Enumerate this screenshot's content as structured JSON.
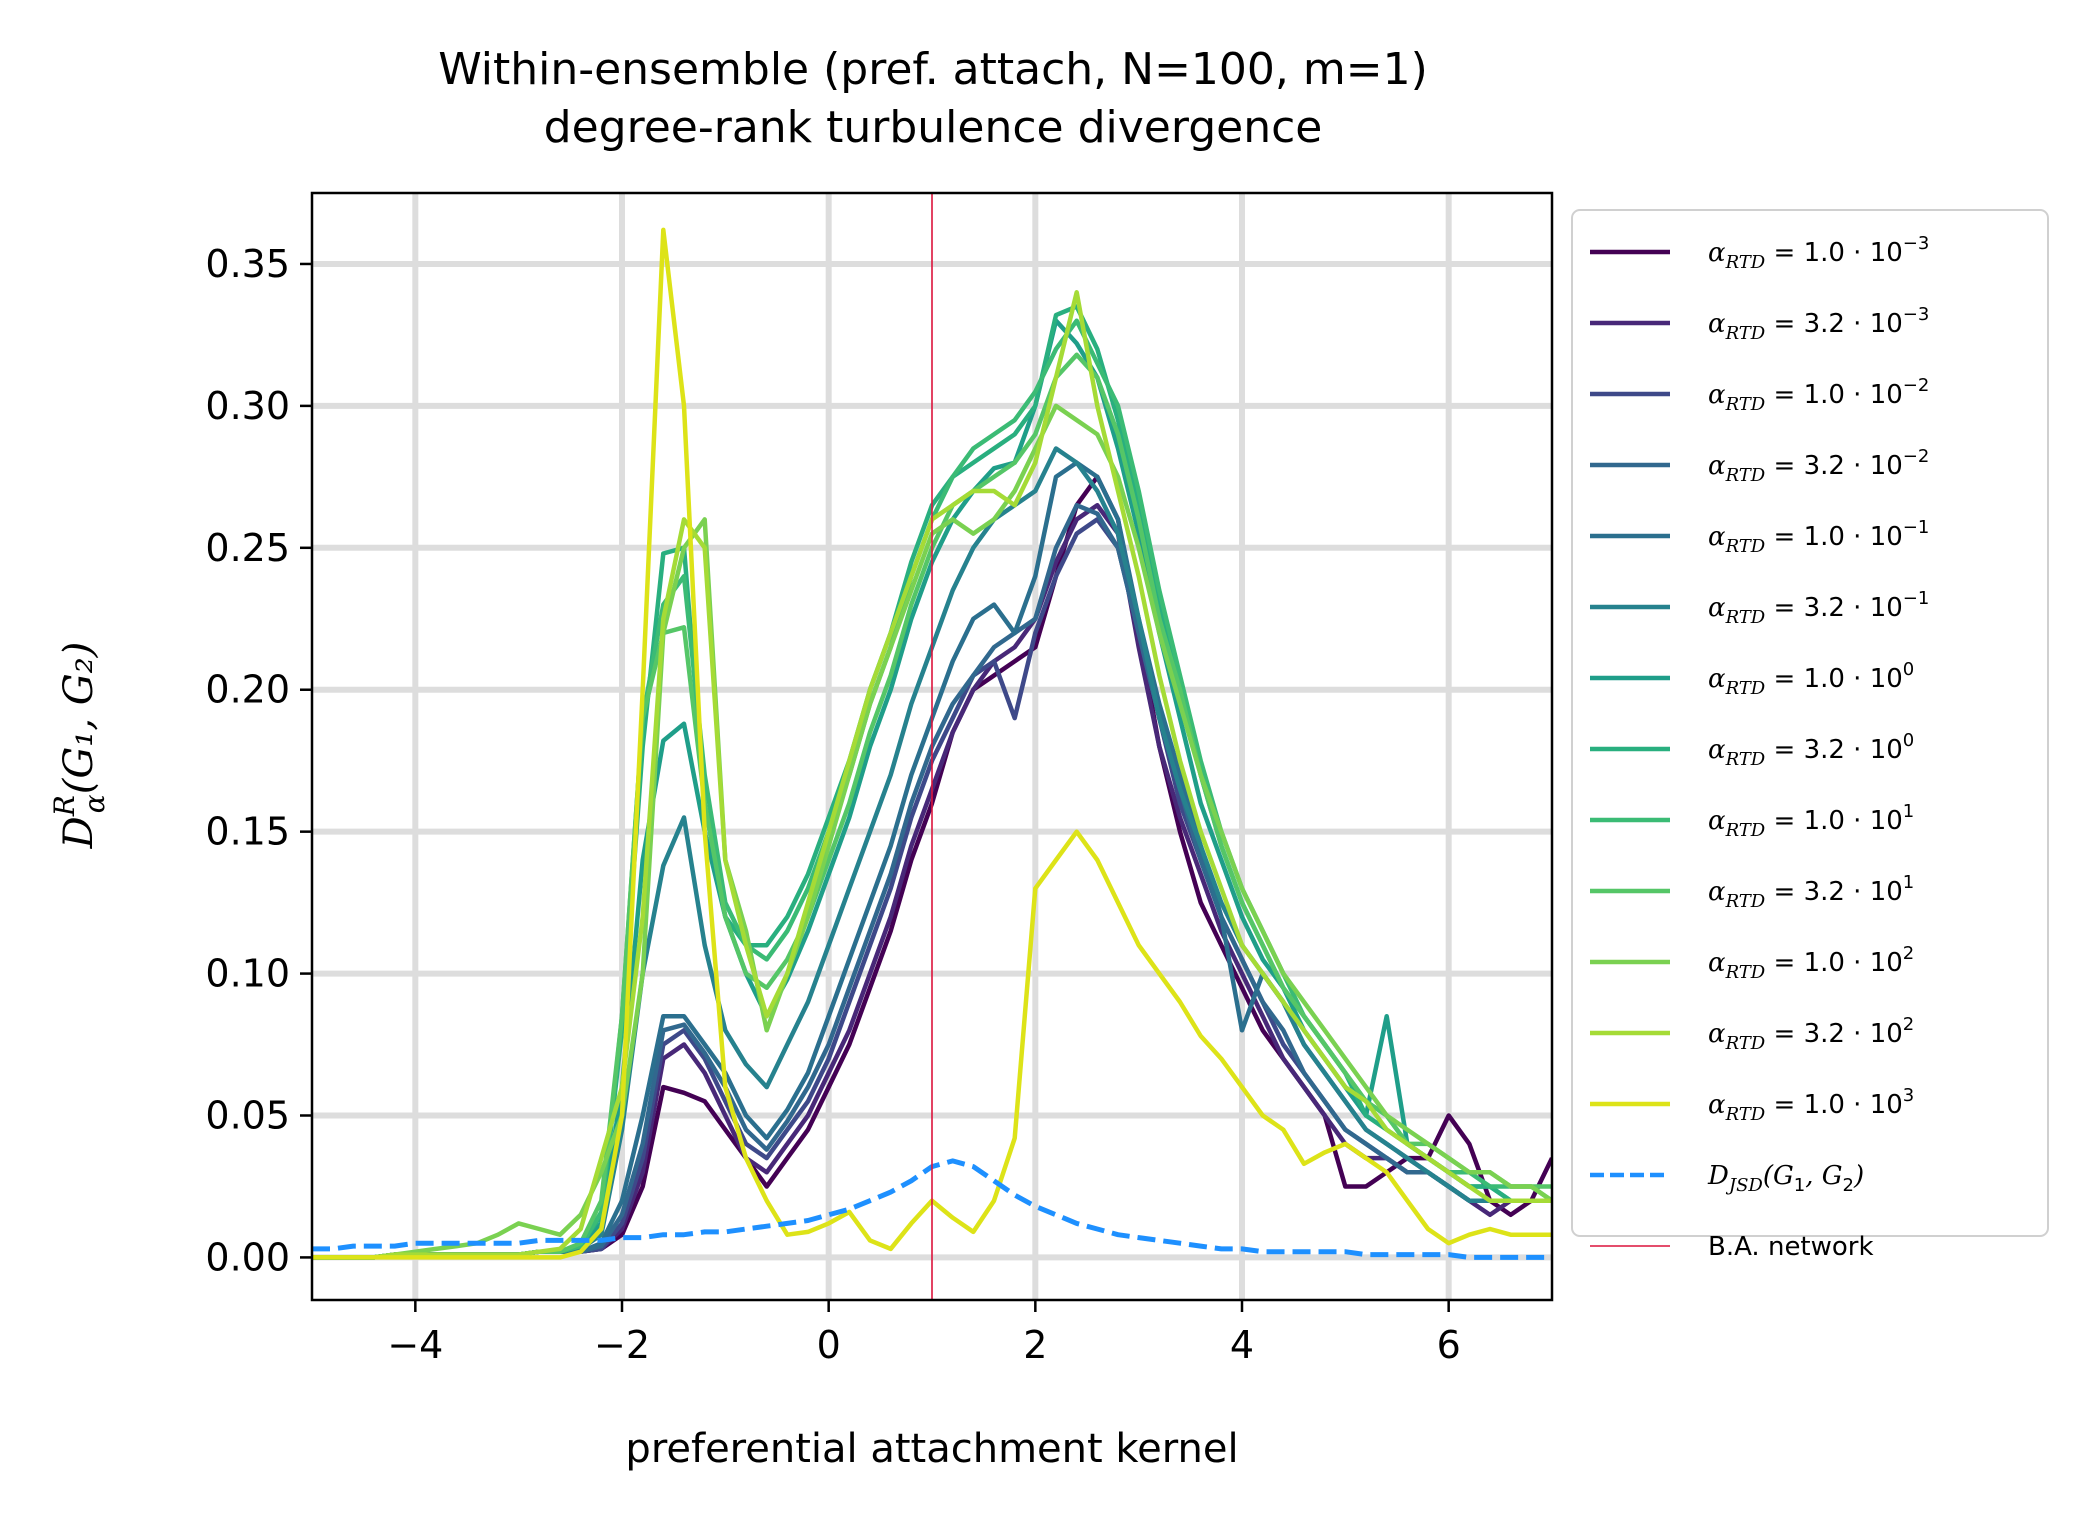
{
  "chart_data": {
    "type": "line",
    "title": [
      "Within-ensemble (pref. attach, N=100, m=1)",
      "degree-rank turbulence divergence"
    ],
    "xlabel": "preferential attachment kernel",
    "ylabel": {
      "base": "D",
      "sup": "R",
      "sub": "α",
      "args": "(G₁, G₂)"
    },
    "xlim": [
      -5,
      7
    ],
    "ylim": [
      -0.015,
      0.375
    ],
    "xticks": [
      -4,
      -2,
      0,
      2,
      4,
      6
    ],
    "xtick_labels": [
      "−4",
      "−2",
      "0",
      "2",
      "4",
      "6"
    ],
    "yticks": [
      0.0,
      0.05,
      0.1,
      0.15,
      0.2,
      0.25,
      0.3,
      0.35
    ],
    "ytick_labels": [
      "0.00",
      "0.05",
      "0.10",
      "0.15",
      "0.20",
      "0.25",
      "0.30",
      "0.35"
    ],
    "grid": true,
    "legend_position": "outside-right",
    "x": [
      -5.0,
      -4.8,
      -4.6,
      -4.4,
      -4.2,
      -4.0,
      -3.8,
      -3.6,
      -3.4,
      -3.2,
      -3.0,
      -2.8,
      -2.6,
      -2.4,
      -2.2,
      -2.0,
      -1.8,
      -1.6,
      -1.4,
      -1.2,
      -1.0,
      -0.8,
      -0.6,
      -0.4,
      -0.2,
      0.0,
      0.2,
      0.4,
      0.6,
      0.8,
      1.0,
      1.2,
      1.4,
      1.6,
      1.8,
      2.0,
      2.2,
      2.4,
      2.6,
      2.8,
      3.0,
      3.2,
      3.4,
      3.6,
      3.8,
      4.0,
      4.2,
      4.4,
      4.6,
      4.8,
      5.0,
      5.2,
      5.4,
      5.6,
      5.8,
      6.0,
      6.2,
      6.4,
      6.6,
      6.8,
      7.0
    ],
    "series": [
      {
        "name_coef": "1.0",
        "name_exp": "−3",
        "color": "#440154",
        "values": [
          0.0,
          0.0,
          0.0,
          0.0,
          0.001,
          0.001,
          0.001,
          0.001,
          0.001,
          0.001,
          0.001,
          0.002,
          0.002,
          0.002,
          0.003,
          0.008,
          0.025,
          0.06,
          0.058,
          0.055,
          0.045,
          0.035,
          0.025,
          0.035,
          0.045,
          0.06,
          0.075,
          0.095,
          0.115,
          0.14,
          0.16,
          0.185,
          0.2,
          0.205,
          0.21,
          0.215,
          0.24,
          0.265,
          0.275,
          0.26,
          0.22,
          0.18,
          0.15,
          0.125,
          0.11,
          0.095,
          0.08,
          0.07,
          0.06,
          0.05,
          0.025,
          0.025,
          0.03,
          0.035,
          0.035,
          0.05,
          0.04,
          0.02,
          0.015,
          0.02,
          0.035
        ]
      },
      {
        "name_coef": "3.2",
        "name_exp": "−3",
        "color": "#482878",
        "values": [
          0.0,
          0.0,
          0.0,
          0.0,
          0.001,
          0.001,
          0.001,
          0.001,
          0.001,
          0.001,
          0.001,
          0.002,
          0.002,
          0.002,
          0.003,
          0.01,
          0.03,
          0.07,
          0.075,
          0.065,
          0.05,
          0.035,
          0.03,
          0.04,
          0.05,
          0.065,
          0.08,
          0.1,
          0.12,
          0.145,
          0.165,
          0.185,
          0.2,
          0.21,
          0.215,
          0.225,
          0.245,
          0.26,
          0.265,
          0.255,
          0.215,
          0.18,
          0.155,
          0.135,
          0.115,
          0.1,
          0.085,
          0.07,
          0.06,
          0.05,
          0.04,
          0.035,
          0.035,
          0.03,
          0.03,
          0.025,
          0.02,
          0.015,
          0.02,
          0.02,
          0.02
        ]
      },
      {
        "name_coef": "1.0",
        "name_exp": "−2",
        "color": "#3e4989",
        "values": [
          0.0,
          0.0,
          0.0,
          0.0,
          0.001,
          0.001,
          0.001,
          0.001,
          0.001,
          0.001,
          0.001,
          0.002,
          0.002,
          0.002,
          0.003,
          0.012,
          0.035,
          0.075,
          0.08,
          0.07,
          0.055,
          0.04,
          0.035,
          0.045,
          0.055,
          0.07,
          0.09,
          0.11,
          0.13,
          0.155,
          0.175,
          0.19,
          0.205,
          0.21,
          0.19,
          0.22,
          0.24,
          0.255,
          0.26,
          0.25,
          0.22,
          0.19,
          0.16,
          0.14,
          0.12,
          0.105,
          0.09,
          0.075,
          0.065,
          0.055,
          0.045,
          0.04,
          0.035,
          0.03,
          0.03,
          0.025,
          0.02,
          0.02,
          0.02,
          0.02,
          0.02
        ]
      },
      {
        "name_coef": "3.2",
        "name_exp": "−2",
        "color": "#31688e",
        "values": [
          0.0,
          0.0,
          0.0,
          0.0,
          0.001,
          0.001,
          0.001,
          0.001,
          0.001,
          0.001,
          0.001,
          0.002,
          0.002,
          0.002,
          0.004,
          0.015,
          0.04,
          0.08,
          0.082,
          0.072,
          0.06,
          0.045,
          0.038,
          0.048,
          0.06,
          0.075,
          0.095,
          0.115,
          0.135,
          0.16,
          0.18,
          0.195,
          0.205,
          0.215,
          0.22,
          0.225,
          0.25,
          0.265,
          0.262,
          0.25,
          0.22,
          0.19,
          0.165,
          0.14,
          0.12,
          0.105,
          0.09,
          0.08,
          0.065,
          0.055,
          0.045,
          0.04,
          0.035,
          0.03,
          0.03,
          0.025,
          0.02,
          0.02,
          0.02,
          0.02,
          0.02
        ]
      },
      {
        "name_coef": "1.0",
        "name_exp": "−1",
        "color": "#2b6f8e",
        "values": [
          0.0,
          0.0,
          0.0,
          0.0,
          0.001,
          0.001,
          0.001,
          0.001,
          0.001,
          0.001,
          0.001,
          0.002,
          0.002,
          0.002,
          0.005,
          0.02,
          0.05,
          0.085,
          0.085,
          0.075,
          0.065,
          0.05,
          0.042,
          0.052,
          0.065,
          0.085,
          0.105,
          0.125,
          0.145,
          0.17,
          0.19,
          0.21,
          0.225,
          0.23,
          0.22,
          0.24,
          0.275,
          0.28,
          0.275,
          0.26,
          0.225,
          0.195,
          0.17,
          0.145,
          0.12,
          0.08,
          0.1,
          0.09,
          0.075,
          0.065,
          0.055,
          0.045,
          0.04,
          0.035,
          0.03,
          0.025,
          0.02,
          0.02,
          0.02,
          0.02,
          0.02
        ]
      },
      {
        "name_coef": "3.2",
        "name_exp": "−1",
        "color": "#26828e",
        "values": [
          0.0,
          0.0,
          0.0,
          0.0,
          0.001,
          0.001,
          0.001,
          0.001,
          0.001,
          0.001,
          0.001,
          0.002,
          0.002,
          0.003,
          0.008,
          0.045,
          0.1,
          0.138,
          0.155,
          0.11,
          0.08,
          0.068,
          0.06,
          0.075,
          0.09,
          0.11,
          0.13,
          0.15,
          0.17,
          0.195,
          0.215,
          0.235,
          0.25,
          0.26,
          0.265,
          0.27,
          0.285,
          0.28,
          0.27,
          0.255,
          0.225,
          0.19,
          0.165,
          0.145,
          0.125,
          0.11,
          0.1,
          0.09,
          0.075,
          0.065,
          0.055,
          0.045,
          0.04,
          0.035,
          0.03,
          0.025,
          0.02,
          0.02,
          0.02,
          0.02,
          0.02
        ]
      },
      {
        "name_coef": "1.0",
        "name_exp": "0",
        "color": "#1f9e89",
        "values": [
          0.0,
          0.0,
          0.0,
          0.0,
          0.001,
          0.001,
          0.001,
          0.001,
          0.001,
          0.001,
          0.001,
          0.002,
          0.002,
          0.004,
          0.012,
          0.06,
          0.14,
          0.182,
          0.188,
          0.15,
          0.12,
          0.1,
          0.085,
          0.098,
          0.115,
          0.135,
          0.155,
          0.18,
          0.2,
          0.225,
          0.245,
          0.26,
          0.27,
          0.278,
          0.28,
          0.3,
          0.33,
          0.322,
          0.31,
          0.285,
          0.255,
          0.22,
          0.19,
          0.16,
          0.14,
          0.12,
          0.105,
          0.095,
          0.08,
          0.07,
          0.06,
          0.05,
          0.085,
          0.04,
          0.035,
          0.03,
          0.025,
          0.025,
          0.02,
          0.02,
          0.02
        ]
      },
      {
        "name_coef": "3.2",
        "name_exp": "0",
        "color": "#29af7f",
        "values": [
          0.0,
          0.0,
          0.0,
          0.0,
          0.001,
          0.001,
          0.001,
          0.001,
          0.001,
          0.001,
          0.001,
          0.002,
          0.002,
          0.004,
          0.015,
          0.08,
          0.18,
          0.248,
          0.25,
          0.16,
          0.12,
          0.11,
          0.11,
          0.12,
          0.135,
          0.155,
          0.175,
          0.2,
          0.22,
          0.245,
          0.265,
          0.275,
          0.28,
          0.285,
          0.29,
          0.3,
          0.332,
          0.335,
          0.32,
          0.295,
          0.265,
          0.23,
          0.2,
          0.17,
          0.145,
          0.125,
          0.11,
          0.095,
          0.085,
          0.075,
          0.065,
          0.05,
          0.045,
          0.04,
          0.035,
          0.03,
          0.025,
          0.025,
          0.02,
          0.02,
          0.02
        ]
      },
      {
        "name_coef": "1.0",
        "name_exp": "1",
        "color": "#3bbb75",
        "values": [
          0.0,
          0.0,
          0.0,
          0.0,
          0.001,
          0.001,
          0.001,
          0.001,
          0.001,
          0.001,
          0.001,
          0.002,
          0.002,
          0.004,
          0.016,
          0.085,
          0.19,
          0.23,
          0.24,
          0.17,
          0.125,
          0.11,
          0.105,
          0.115,
          0.13,
          0.15,
          0.17,
          0.195,
          0.215,
          0.24,
          0.26,
          0.275,
          0.285,
          0.29,
          0.295,
          0.305,
          0.32,
          0.33,
          0.315,
          0.3,
          0.27,
          0.235,
          0.205,
          0.175,
          0.15,
          0.13,
          0.115,
          0.1,
          0.085,
          0.075,
          0.065,
          0.055,
          0.05,
          0.04,
          0.035,
          0.03,
          0.03,
          0.025,
          0.025,
          0.025,
          0.02
        ]
      },
      {
        "name_coef": "3.2",
        "name_exp": "1",
        "color": "#55c667",
        "values": [
          0.0,
          0.0,
          0.0,
          0.0,
          0.001,
          0.001,
          0.001,
          0.001,
          0.001,
          0.001,
          0.001,
          0.002,
          0.002,
          0.005,
          0.02,
          0.085,
          0.19,
          0.22,
          0.222,
          0.16,
          0.12,
          0.1,
          0.095,
          0.105,
          0.12,
          0.14,
          0.16,
          0.185,
          0.205,
          0.23,
          0.25,
          0.265,
          0.27,
          0.275,
          0.28,
          0.29,
          0.31,
          0.318,
          0.31,
          0.29,
          0.26,
          0.225,
          0.2,
          0.17,
          0.145,
          0.125,
          0.11,
          0.095,
          0.085,
          0.075,
          0.065,
          0.055,
          0.05,
          0.04,
          0.04,
          0.035,
          0.03,
          0.03,
          0.025,
          0.025,
          0.025
        ]
      },
      {
        "name_coef": "1.0",
        "name_exp": "2",
        "color": "#7ad151",
        "values": [
          0.0,
          0.0,
          0.0,
          0.0,
          0.001,
          0.002,
          0.003,
          0.004,
          0.005,
          0.008,
          0.012,
          0.01,
          0.008,
          0.015,
          0.03,
          0.05,
          0.1,
          0.22,
          0.25,
          0.26,
          0.14,
          0.115,
          0.08,
          0.1,
          0.12,
          0.145,
          0.17,
          0.195,
          0.215,
          0.235,
          0.255,
          0.26,
          0.255,
          0.26,
          0.27,
          0.285,
          0.3,
          0.295,
          0.29,
          0.275,
          0.25,
          0.22,
          0.195,
          0.17,
          0.15,
          0.13,
          0.115,
          0.1,
          0.09,
          0.08,
          0.07,
          0.06,
          0.05,
          0.045,
          0.04,
          0.035,
          0.03,
          0.03,
          0.025,
          0.025,
          0.02
        ]
      },
      {
        "name_coef": "3.2",
        "name_exp": "2",
        "color": "#a5db36",
        "values": [
          0.0,
          0.0,
          0.0,
          0.0,
          0.001,
          0.001,
          0.001,
          0.001,
          0.001,
          0.001,
          0.001,
          0.002,
          0.003,
          0.01,
          0.035,
          0.06,
          0.12,
          0.225,
          0.26,
          0.25,
          0.14,
          0.11,
          0.085,
          0.1,
          0.125,
          0.15,
          0.175,
          0.2,
          0.22,
          0.24,
          0.26,
          0.265,
          0.27,
          0.27,
          0.265,
          0.28,
          0.31,
          0.34,
          0.3,
          0.27,
          0.24,
          0.205,
          0.175,
          0.15,
          0.13,
          0.11,
          0.1,
          0.09,
          0.08,
          0.07,
          0.06,
          0.055,
          0.045,
          0.04,
          0.035,
          0.03,
          0.025,
          0.02,
          0.02,
          0.02,
          0.02
        ]
      },
      {
        "name_coef": "1.0",
        "name_exp": "3",
        "color": "#dde318",
        "values": [
          0.0,
          0.0,
          0.0,
          0.0,
          0.0,
          0.0,
          0.0,
          0.0,
          0.0,
          0.0,
          0.0,
          0.0,
          0.0,
          0.002,
          0.01,
          0.05,
          0.2,
          0.362,
          0.3,
          0.15,
          0.06,
          0.035,
          0.02,
          0.008,
          0.009,
          0.012,
          0.016,
          0.006,
          0.003,
          0.012,
          0.02,
          0.014,
          0.009,
          0.02,
          0.042,
          0.13,
          0.14,
          0.15,
          0.14,
          0.125,
          0.11,
          0.1,
          0.09,
          0.078,
          0.07,
          0.06,
          0.05,
          0.045,
          0.033,
          0.037,
          0.04,
          0.035,
          0.03,
          0.02,
          0.01,
          0.005,
          0.008,
          0.01,
          0.008,
          0.008,
          0.008
        ]
      },
      {
        "name_coef": "",
        "name_exp": "",
        "djsd": true,
        "color": "#1e90ff",
        "dashed": true,
        "values": [
          0.003,
          0.003,
          0.004,
          0.004,
          0.004,
          0.005,
          0.005,
          0.005,
          0.005,
          0.005,
          0.005,
          0.006,
          0.006,
          0.006,
          0.006,
          0.007,
          0.007,
          0.008,
          0.008,
          0.009,
          0.009,
          0.01,
          0.011,
          0.012,
          0.013,
          0.015,
          0.017,
          0.02,
          0.023,
          0.027,
          0.032,
          0.034,
          0.032,
          0.027,
          0.022,
          0.018,
          0.015,
          0.012,
          0.01,
          0.008,
          0.007,
          0.006,
          0.005,
          0.004,
          0.003,
          0.003,
          0.002,
          0.002,
          0.002,
          0.002,
          0.002,
          0.001,
          0.001,
          0.001,
          0.001,
          0.001,
          0.0,
          0.0,
          0.0,
          0.0,
          0.0
        ]
      }
    ],
    "vline": {
      "x": 1.0,
      "color": "#dc143c",
      "name": "B.A. network"
    }
  }
}
